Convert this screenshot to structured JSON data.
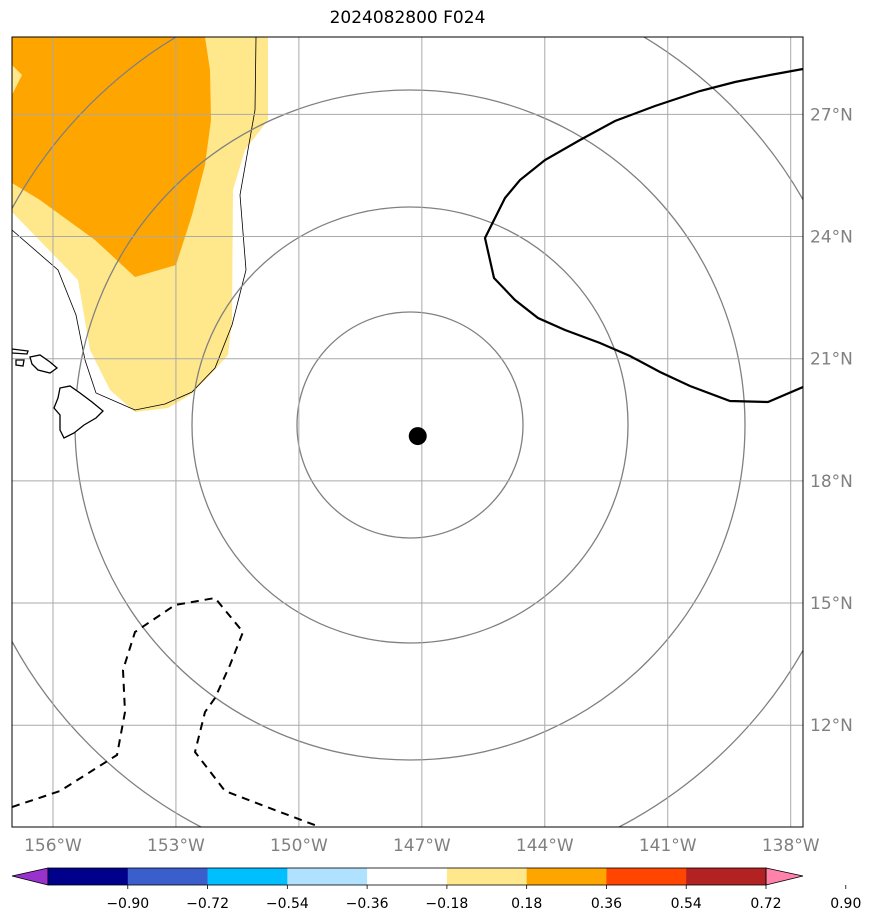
{
  "title": "2024082800 F024",
  "map": {
    "lon_range": [
      -157,
      -137.7
    ],
    "lat_range": [
      9.5,
      28.9
    ],
    "center_marker": {
      "lon": -147.1,
      "lat": 19.1
    },
    "lon_ticks": [
      {
        "value": -156,
        "label": "156°W"
      },
      {
        "value": -153,
        "label": "153°W"
      },
      {
        "value": -150,
        "label": "150°W"
      },
      {
        "value": -147,
        "label": "147°W"
      },
      {
        "value": -144,
        "label": "144°W"
      },
      {
        "value": -141,
        "label": "141°W"
      },
      {
        "value": -138,
        "label": "138°W"
      }
    ],
    "lat_ticks": [
      {
        "value": 12,
        "label": "12°N"
      },
      {
        "value": 15,
        "label": "15°N"
      },
      {
        "value": 18,
        "label": "18°N"
      },
      {
        "value": 21,
        "label": "21°N"
      },
      {
        "value": 24,
        "label": "24°N"
      },
      {
        "value": 27,
        "label": "27°N"
      }
    ],
    "grid": true,
    "range_rings": 4,
    "colors": {
      "grid": "#a9a9a9",
      "rings": "#808080",
      "shade_light": "#ffe88c",
      "shade_orange": "#ffa500"
    }
  },
  "colorbar": {
    "colors": [
      "#9932cc",
      "#00008b",
      "#3a5fcd",
      "#00bfff",
      "#b0e2ff",
      "#ffffff",
      "#ffe88c",
      "#ffa500",
      "#ff4500",
      "#b22222",
      "#ff82ab"
    ],
    "tick_labels": [
      "−0.90",
      "−0.72",
      "−0.54",
      "−0.36",
      "−0.18",
      "0.18",
      "0.36",
      "0.54",
      "0.72",
      "0.90"
    ]
  }
}
